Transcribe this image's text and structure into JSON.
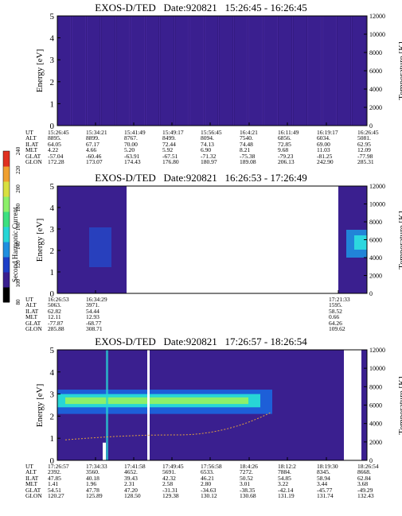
{
  "panels": [
    {
      "title": "EXOS-D/TED   Date:920821   15:26:45 - 16:26:45",
      "left_label": "Energy [eV]",
      "right_label": "Temperature [K]",
      "yticks_left": [
        "0",
        "1",
        "2",
        "3",
        "4",
        "5"
      ],
      "yticks_right": [
        "0",
        "2000",
        "4000",
        "6000",
        "8000",
        "10000",
        "12000"
      ],
      "rows": [
        {
          "label": "UT",
          "values": [
            "15:26:45",
            "15:34:21",
            "15:41:49",
            "15:49:17",
            "15:56:45",
            "16:4:21",
            "16:11:49",
            "16:19:17",
            "16:26:45"
          ]
        },
        {
          "label": "ALT",
          "values": [
            "8895.",
            "8899.",
            "8767.",
            "8499.",
            "8094.",
            "7540.",
            "6856.",
            "6034.",
            "5081."
          ]
        },
        {
          "label": "ILAT",
          "values": [
            "64.05",
            "67.17",
            "70.00",
            "72.44",
            "74.13",
            "74.48",
            "72.85",
            "69.00",
            "62.95"
          ]
        },
        {
          "label": "MLT",
          "values": [
            "4.22",
            "4.66",
            "5.20",
            "5.92",
            "6.90",
            "8.21",
            "9.68",
            "11.03",
            "12.09"
          ]
        },
        {
          "label": "GLAT",
          "values": [
            "-57.04",
            "-60.46",
            "-63.91",
            "-67.51",
            "-71.32",
            "-75.38",
            "-79.23",
            "-81.25",
            "-77.98"
          ]
        },
        {
          "label": "GLON",
          "values": [
            "172.28",
            "173.07",
            "174.43",
            "176.80",
            "180.97",
            "189.08",
            "206.13",
            "242.90",
            "285.31"
          ]
        }
      ]
    },
    {
      "title": "EXOS-D/TED   Date:920821   16:26:53 - 17:26:49",
      "left_label": "Energy [eV]",
      "right_label": "Temperature [K]",
      "yticks_left": [
        "0",
        "1",
        "2",
        "3",
        "4",
        "5"
      ],
      "yticks_right": [
        "0",
        "2000",
        "4000",
        "6000",
        "8000",
        "10000",
        "12000"
      ],
      "rows": [
        {
          "label": "UT",
          "values": [
            "16:26:53",
            "16:34:29",
            "17:21:33"
          ]
        },
        {
          "label": "ALT",
          "values": [
            "5063.",
            "3971.",
            "1595."
          ]
        },
        {
          "label": "ILAT",
          "values": [
            "62.82",
            "54.44",
            "58.52"
          ]
        },
        {
          "label": "MLT",
          "values": [
            "12.11",
            "12.93",
            "0.66"
          ]
        },
        {
          "label": "GLAT",
          "values": [
            "-77.87",
            "-68.77",
            "64.26"
          ]
        },
        {
          "label": "GLON",
          "values": [
            "285.88",
            "308.71",
            "109.62"
          ]
        }
      ]
    },
    {
      "title": "EXOS-D/TED   Date:920821   17:26:57 - 18:26:54",
      "left_label": "Energy [eV]",
      "right_label": "Temperature [K]",
      "yticks_left": [
        "0",
        "1",
        "2",
        "3",
        "4",
        "5"
      ],
      "yticks_right": [
        "0",
        "2000",
        "4000",
        "6000",
        "8000",
        "10000",
        "12000"
      ],
      "rows": [
        {
          "label": "UT",
          "values": [
            "17:26:57",
            "17:34:33",
            "17:41:58",
            "17:49:45",
            "17:56:58",
            "18:4:26",
            "18:12:2",
            "18:19:30",
            "18:26:54"
          ]
        },
        {
          "label": "ALT",
          "values": [
            "2392.",
            "3560.",
            "4652.",
            "5691.",
            "6533.",
            "7272.",
            "7884.",
            "8345.",
            "8668."
          ]
        },
        {
          "label": "ILAT",
          "values": [
            "47.85",
            "40.18",
            "39.43",
            "42.32",
            "46.21",
            "50.52",
            "54.85",
            "58.94",
            "62.84"
          ]
        },
        {
          "label": "MLT",
          "values": [
            "1.41",
            "1.96",
            "2.31",
            "2.58",
            "2.80",
            "3.01",
            "3.22",
            "3.44",
            "3.68"
          ]
        },
        {
          "label": "GLAT",
          "values": [
            "54.51",
            "47.78",
            "47.20",
            "-31.31",
            "-34.63",
            "-38.35",
            "-42.14",
            "-45.77",
            "-49.29"
          ]
        },
        {
          "label": "GLON",
          "values": [
            "120.27",
            "125.89",
            "128.50",
            "129.38",
            "130.12",
            "130.68",
            "131.19",
            "131.74",
            "132.43"
          ]
        }
      ]
    }
  ],
  "colorbar": {
    "label": "Second Harmonic Current",
    "ticks": [
      "80",
      "100",
      "120",
      "140",
      "160",
      "180",
      "200",
      "220",
      "240"
    ]
  },
  "chart_data": {
    "type": "heatmap",
    "title": "EXOS-D/TED Date:920821",
    "xlabel": "UT",
    "ylabel": "Energy [eV]",
    "y2label": "Temperature [K]",
    "ylim": [
      0,
      5
    ],
    "y2lim": [
      0,
      12000
    ],
    "zlabel": "Second Harmonic Current",
    "zlim": [
      80,
      240
    ]
  }
}
